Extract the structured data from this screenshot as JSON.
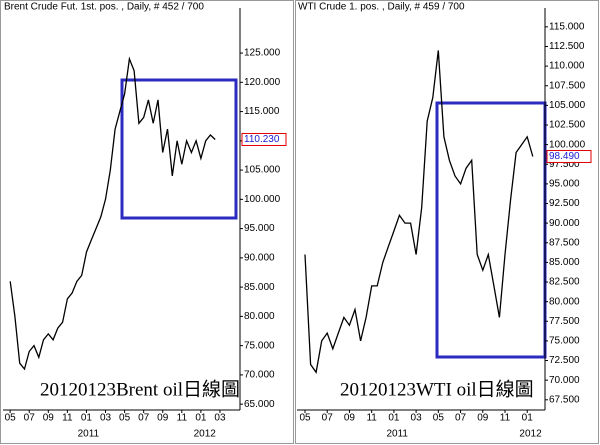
{
  "chart_data": [
    {
      "type": "line",
      "title": "Brent Crude Fut. 1st. pos. , Daily, # 452 / 700",
      "x": [
        0,
        0.5,
        1,
        1.5,
        2,
        2.5,
        3,
        3.5,
        4,
        4.5,
        5,
        5.5,
        6,
        6.5,
        7,
        7.5,
        8,
        8.5,
        9,
        9.5,
        10,
        10.5,
        11,
        11.5,
        12,
        12.5,
        13,
        13.5,
        14,
        14.5,
        15,
        15.5,
        16,
        16.5,
        17,
        17.5,
        18,
        18.5,
        19,
        19.5,
        20,
        20.5,
        21,
        21.5
      ],
      "values": [
        86,
        80,
        72,
        71,
        74,
        75,
        73,
        76,
        77,
        76,
        78,
        79,
        83,
        84,
        86,
        87,
        91,
        93,
        95,
        97,
        100,
        105,
        112,
        115,
        118,
        124,
        122,
        113,
        114,
        117,
        113,
        117,
        108,
        112,
        104,
        110,
        106,
        110,
        108,
        110,
        107,
        110,
        111,
        110.23
      ],
      "color": "#000000",
      "xlim": [
        -0.75,
        24.1
      ],
      "ylim": [
        64,
        132.7
      ],
      "yticks": [
        {
          "value": 65,
          "label": "65.000"
        },
        {
          "value": 70,
          "label": "70.000"
        },
        {
          "value": 75,
          "label": "75.000"
        },
        {
          "value": 80,
          "label": "80.000"
        },
        {
          "value": 85,
          "label": "85.000"
        },
        {
          "value": 90,
          "label": "90.000"
        },
        {
          "value": 95,
          "label": "95.000"
        },
        {
          "value": 100,
          "label": "100.000"
        },
        {
          "value": 105,
          "label": "105.000"
        },
        {
          "value": 110,
          "label": "110.000"
        },
        {
          "value": 115,
          "label": "115.000"
        },
        {
          "value": 120,
          "label": "120.000"
        },
        {
          "value": 125,
          "label": "125.000"
        }
      ],
      "xticks": [
        {
          "value": 0,
          "label": "05"
        },
        {
          "value": 2,
          "label": "07"
        },
        {
          "value": 4,
          "label": "09"
        },
        {
          "value": 6,
          "label": "11"
        },
        {
          "value": 8,
          "label": "01"
        },
        {
          "value": 10,
          "label": "03"
        },
        {
          "value": 12,
          "label": "05"
        },
        {
          "value": 14,
          "label": "07"
        },
        {
          "value": 16,
          "label": "09"
        },
        {
          "value": 18,
          "label": "11"
        },
        {
          "value": 20,
          "label": "01"
        },
        {
          "value": 22,
          "label": "03"
        }
      ],
      "years": [
        {
          "value": 8.2,
          "label": "2011"
        },
        {
          "value": 20.4,
          "label": "2012"
        }
      ],
      "last_price": {
        "value": 110.23,
        "label": "110.230"
      },
      "annotation": "20120123Brent oil日線圖"
    },
    {
      "type": "line",
      "title": "WTI Crude 1. pos. , Daily, # 459 / 700",
      "x": [
        0,
        0.5,
        1,
        1.5,
        2,
        2.5,
        3,
        3.5,
        4,
        4.5,
        5,
        5.5,
        6,
        6.5,
        7,
        7.5,
        8,
        8.5,
        9,
        9.5,
        10,
        10.5,
        11,
        11.5,
        12,
        12.5,
        13,
        13.5,
        14,
        14.5,
        15,
        15.5,
        16,
        16.5,
        17,
        17.5,
        18,
        18.5,
        19,
        19.5,
        20,
        20.5
      ],
      "values": [
        86,
        72,
        71,
        75,
        76,
        74,
        76,
        78,
        77,
        79,
        75,
        78,
        82,
        82,
        85,
        87,
        89,
        91,
        90,
        90,
        86,
        92,
        103,
        106,
        112,
        101,
        98,
        96,
        95,
        97,
        98,
        86,
        84,
        86,
        82,
        78,
        86,
        93,
        99,
        100,
        101,
        98.49
      ],
      "color": "#000000",
      "xlim": [
        -0.72,
        21.6
      ],
      "ylim": [
        66.2,
        117.4
      ],
      "yticks": [
        {
          "value": 67.5,
          "label": "67.500"
        },
        {
          "value": 70,
          "label": "70.000"
        },
        {
          "value": 72.5,
          "label": "72.500"
        },
        {
          "value": 75,
          "label": "75.000"
        },
        {
          "value": 77.5,
          "label": "77.500"
        },
        {
          "value": 80,
          "label": "80.000"
        },
        {
          "value": 82.5,
          "label": "82.500"
        },
        {
          "value": 85,
          "label": "85.000"
        },
        {
          "value": 87.5,
          "label": "87.500"
        },
        {
          "value": 90,
          "label": "90.000"
        },
        {
          "value": 92.5,
          "label": "92.500"
        },
        {
          "value": 95,
          "label": "95.000"
        },
        {
          "value": 97.5,
          "label": "97.500"
        },
        {
          "value": 100,
          "label": "100.000"
        },
        {
          "value": 102.5,
          "label": "102.500"
        },
        {
          "value": 105,
          "label": "105.000"
        },
        {
          "value": 107.5,
          "label": "107.500"
        },
        {
          "value": 110,
          "label": "110.000"
        },
        {
          "value": 112.5,
          "label": "112.500"
        },
        {
          "value": 115,
          "label": "115.000"
        }
      ],
      "xticks": [
        {
          "value": 0,
          "label": "05"
        },
        {
          "value": 2,
          "label": "07"
        },
        {
          "value": 4,
          "label": "09"
        },
        {
          "value": 6,
          "label": "11"
        },
        {
          "value": 8,
          "label": "01"
        },
        {
          "value": 10,
          "label": "03"
        },
        {
          "value": 12,
          "label": "05"
        },
        {
          "value": 14,
          "label": "07"
        },
        {
          "value": 16,
          "label": "09"
        },
        {
          "value": 18,
          "label": "11"
        },
        {
          "value": 20,
          "label": "01"
        }
      ],
      "years": [
        {
          "value": 8.3,
          "label": "2011"
        },
        {
          "value": 20.3,
          "label": "2012"
        }
      ],
      "last_price": {
        "value": 98.49,
        "label": "98.490"
      },
      "annotation": "20120123WTI oil日線圖"
    }
  ]
}
